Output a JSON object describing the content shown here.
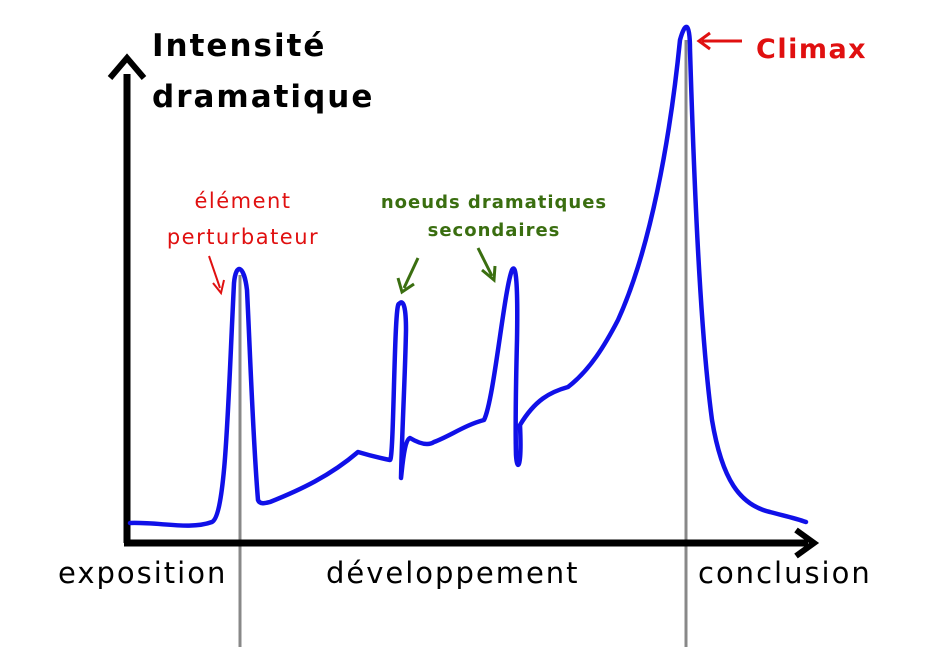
{
  "axis": {
    "y_title_line1": "Intensité",
    "y_title_line2": "dramatique"
  },
  "phases": {
    "exposition": "exposition",
    "developpement": "développement",
    "conclusion": "conclusion"
  },
  "annotations": {
    "inciting_line1": "élément",
    "inciting_line2": "perturbateur",
    "secondary_line1": "noeuds dramatiques",
    "secondary_line2": "secondaires",
    "climax": "Climax"
  },
  "colors": {
    "curve": "#1010e8",
    "axis": "#000000",
    "marker_lines": "#888888",
    "annotation_red": "#e01010",
    "annotation_green": "#3a6e10",
    "text": "#000000"
  }
}
